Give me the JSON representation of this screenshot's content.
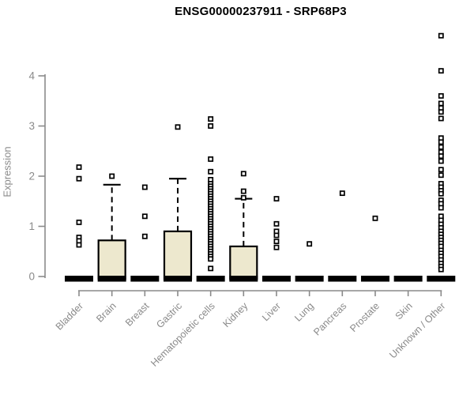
{
  "chart_data": {
    "type": "boxplot",
    "title": "ENSG00000237911 - SRP68P3",
    "ylabel": "Expression",
    "xlabel": "",
    "ylim": [
      0,
      4
    ],
    "yticks": [
      0,
      1,
      2,
      3,
      4
    ],
    "grid": "off",
    "legend": null,
    "categories": [
      "Bladder",
      "Brain",
      "Breast",
      "Gastric",
      "Hematopoietic cells",
      "Kidney",
      "Liver",
      "Lung",
      "Pancreas",
      "Prostate",
      "Skin",
      "Unknown / Other"
    ],
    "colors": {
      "box_fill": "#EDE8CE",
      "box_border": "#000000",
      "median_bar": "#000000",
      "axis": "#8A8A8A",
      "outlier_stroke": "#000000",
      "outlier_fill": "#FFFFFF",
      "title": "#000000",
      "background": "#FFFFFF"
    },
    "series": [
      {
        "category": "Bladder",
        "median": 0,
        "q1": 0,
        "q3": 0,
        "whisker_low": 0,
        "whisker_high": 0,
        "outliers": [
          2.18,
          1.95,
          1.08,
          0.78,
          0.71,
          0.63
        ]
      },
      {
        "category": "Brain",
        "median": 0,
        "q1": 0,
        "q3": 0.72,
        "whisker_low": 0,
        "whisker_high": 1.83,
        "outliers": [
          2.0
        ]
      },
      {
        "category": "Breast",
        "median": 0,
        "q1": 0,
        "q3": 0,
        "whisker_low": 0,
        "whisker_high": 0,
        "outliers": [
          1.78,
          1.2,
          0.8
        ]
      },
      {
        "category": "Gastric",
        "median": 0,
        "q1": 0,
        "q3": 0.9,
        "whisker_low": 0,
        "whisker_high": 1.95,
        "outliers": [
          2.98
        ]
      },
      {
        "category": "Hematopoietic cells",
        "median": 0,
        "q1": 0,
        "q3": 0,
        "whisker_low": 0,
        "whisker_high": 0,
        "outliers": [
          3.14,
          3.0,
          2.34,
          2.09,
          1.93,
          1.85,
          1.8,
          1.75,
          1.7,
          1.65,
          1.6,
          1.55,
          1.5,
          1.45,
          1.4,
          1.35,
          1.3,
          1.25,
          1.2,
          1.15,
          1.1,
          1.05,
          1.0,
          0.95,
          0.9,
          0.85,
          0.8,
          0.75,
          0.7,
          0.65,
          0.6,
          0.55,
          0.5,
          0.45,
          0.4,
          0.35,
          0.16
        ]
      },
      {
        "category": "Kidney",
        "median": 0,
        "q1": 0,
        "q3": 0.6,
        "whisker_low": 0,
        "whisker_high": 1.55,
        "outliers": [
          2.05,
          1.7,
          1.57
        ]
      },
      {
        "category": "Liver",
        "median": 0,
        "q1": 0,
        "q3": 0,
        "whisker_low": 0,
        "whisker_high": 0,
        "outliers": [
          1.55,
          1.05,
          0.9,
          0.82,
          0.7,
          0.58
        ]
      },
      {
        "category": "Lung",
        "median": 0,
        "q1": 0,
        "q3": 0,
        "whisker_low": 0,
        "whisker_high": 0,
        "outliers": [
          0.65
        ]
      },
      {
        "category": "Pancreas",
        "median": 0,
        "q1": 0,
        "q3": 0,
        "whisker_low": 0,
        "whisker_high": 0,
        "outliers": [
          1.66
        ]
      },
      {
        "category": "Prostate",
        "median": 0,
        "q1": 0,
        "q3": 0,
        "whisker_low": 0,
        "whisker_high": 0,
        "outliers": [
          1.16
        ]
      },
      {
        "category": "Skin",
        "median": 0,
        "q1": 0,
        "q3": 0,
        "whisker_low": 0,
        "whisker_high": 0,
        "outliers": []
      },
      {
        "category": "Unknown / Other",
        "median": 0,
        "q1": 0,
        "q3": 0,
        "whisker_low": 0,
        "whisker_high": 0,
        "outliers": [
          4.8,
          4.1,
          3.6,
          3.45,
          3.36,
          3.28,
          3.15,
          2.76,
          2.68,
          2.58,
          2.48,
          2.4,
          2.3,
          2.13,
          2.02,
          1.85,
          1.78,
          1.71,
          1.65,
          1.52,
          1.45,
          1.37,
          1.2,
          1.12,
          1.04,
          0.97,
          0.9,
          0.84,
          0.78,
          0.72,
          0.66,
          0.6,
          0.52,
          0.46,
          0.4,
          0.33,
          0.26,
          0.2,
          0.14
        ]
      }
    ]
  }
}
